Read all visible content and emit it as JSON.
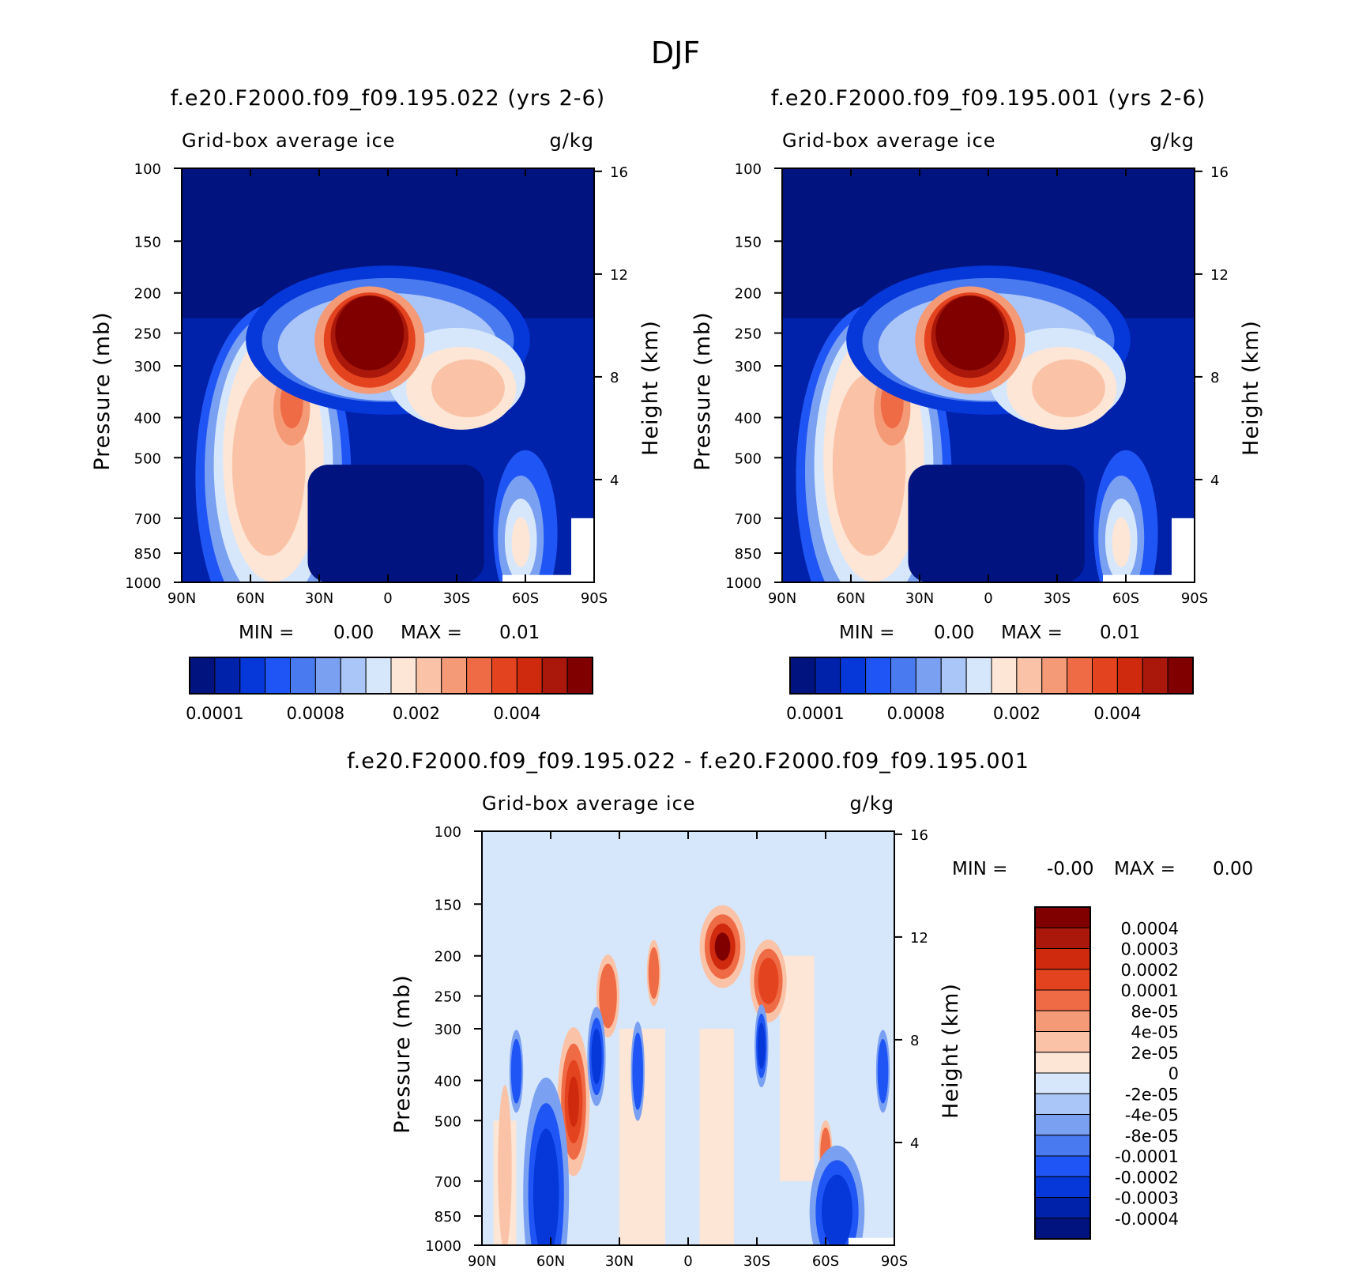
{
  "page": {
    "title": "DJF"
  },
  "colors": {
    "abs": [
      "#00137f",
      "#0022aa",
      "#0537d9",
      "#1f55f5",
      "#4a7af0",
      "#7aa0f2",
      "#aac5f7",
      "#d7e7fb",
      "#fde6d6",
      "#fac3a7",
      "#f59a77",
      "#ef6b45",
      "#e4431f",
      "#cf2a0e",
      "#a9180a",
      "#800000"
    ],
    "diff": [
      "#00137f",
      "#0022aa",
      "#0537d9",
      "#1f55f5",
      "#4a7af0",
      "#7aa0f2",
      "#aac5f7",
      "#d7e7fb",
      "#fde6d6",
      "#fac3a7",
      "#f59a77",
      "#ef6b45",
      "#e4431f",
      "#cf2a0e",
      "#a9180a",
      "#800000"
    ]
  },
  "chart_data": [
    {
      "type": "heatmap",
      "title": "f.e20.F2000.f09_f09.195.022 (yrs 2-6)",
      "subtitle_left": "Grid-box average ice",
      "subtitle_right": "g/kg",
      "ylabel": "Pressure (mb)",
      "y2label": "Height (km)",
      "xticks": [
        "90N",
        "60N",
        "30N",
        "0",
        "30S",
        "60S",
        "90S"
      ],
      "yticks": [
        "100",
        "150",
        "200",
        "250",
        "300",
        "400",
        "500",
        "700",
        "850",
        "1000"
      ],
      "y2ticks": [
        "16",
        "12",
        "8",
        "4"
      ],
      "min_label": "MIN =",
      "min_value": "0.00",
      "max_label": "MAX =",
      "max_value": "0.01",
      "colorbar_labels": [
        "0.0001",
        "0.0008",
        "0.002",
        "0.004"
      ],
      "features": [
        {
          "lat": 10,
          "p": 280,
          "value": 0.006
        },
        {
          "lat": -40,
          "p": 350,
          "value": 0.0025
        },
        {
          "lat": 42,
          "p": 380,
          "value": 0.0035
        },
        {
          "lat": 55,
          "p": 550,
          "value": 0.0022
        },
        {
          "lat": -58,
          "p": 800,
          "value": 0.0016
        }
      ]
    },
    {
      "type": "heatmap",
      "title": "f.e20.F2000.f09_f09.195.001 (yrs 2-6)",
      "subtitle_left": "Grid-box average ice",
      "subtitle_right": "g/kg",
      "ylabel": "Pressure (mb)",
      "y2label": "Height (km)",
      "xticks": [
        "90N",
        "60N",
        "30N",
        "0",
        "30S",
        "60S",
        "90S"
      ],
      "yticks": [
        "100",
        "150",
        "200",
        "250",
        "300",
        "400",
        "500",
        "700",
        "850",
        "1000"
      ],
      "y2ticks": [
        "16",
        "12",
        "8",
        "4"
      ],
      "min_label": "MIN =",
      "min_value": "0.00",
      "max_label": "MAX =",
      "max_value": "0.01",
      "colorbar_labels": [
        "0.0001",
        "0.0008",
        "0.002",
        "0.004"
      ],
      "features": [
        {
          "lat": 10,
          "p": 280,
          "value": 0.006
        },
        {
          "lat": -40,
          "p": 350,
          "value": 0.0025
        },
        {
          "lat": 42,
          "p": 380,
          "value": 0.0032
        },
        {
          "lat": 55,
          "p": 550,
          "value": 0.002
        },
        {
          "lat": -58,
          "p": 800,
          "value": 0.0015
        }
      ]
    },
    {
      "type": "heatmap",
      "title": "f.e20.F2000.f09_f09.195.022 - f.e20.F2000.f09_f09.195.001",
      "subtitle_left": "Grid-box average ice",
      "subtitle_right": "g/kg",
      "ylabel": "Pressure (mb)",
      "y2label": "Height (km)",
      "xticks": [
        "90N",
        "60N",
        "30N",
        "0",
        "30S",
        "60S",
        "90S"
      ],
      "yticks": [
        "100",
        "150",
        "200",
        "250",
        "300",
        "400",
        "500",
        "700",
        "850",
        "1000"
      ],
      "y2ticks": [
        "16",
        "12",
        "8",
        "4"
      ],
      "min_label": "MIN =",
      "min_value": "-0.00",
      "max_label": "MAX =",
      "max_value": "0.00",
      "colorbar_labels": [
        "0.0004",
        "0.0003",
        "0.0002",
        "0.0001",
        "8e-05",
        "4e-05",
        "2e-05",
        "0",
        "-2e-05",
        "-4e-05",
        "-8e-05",
        "-0.0001",
        "-0.0002",
        "-0.0003",
        "-0.0004"
      ],
      "features": [
        {
          "lat": -15,
          "p": 190,
          "value": 0.0004
        },
        {
          "lat": 50,
          "p": 420,
          "value": 0.0002
        },
        {
          "lat": 60,
          "p": 650,
          "value": -0.0002
        },
        {
          "lat": -65,
          "p": 850,
          "value": -0.0002
        },
        {
          "lat": -33,
          "p": 300,
          "value": -0.0002
        }
      ]
    }
  ]
}
